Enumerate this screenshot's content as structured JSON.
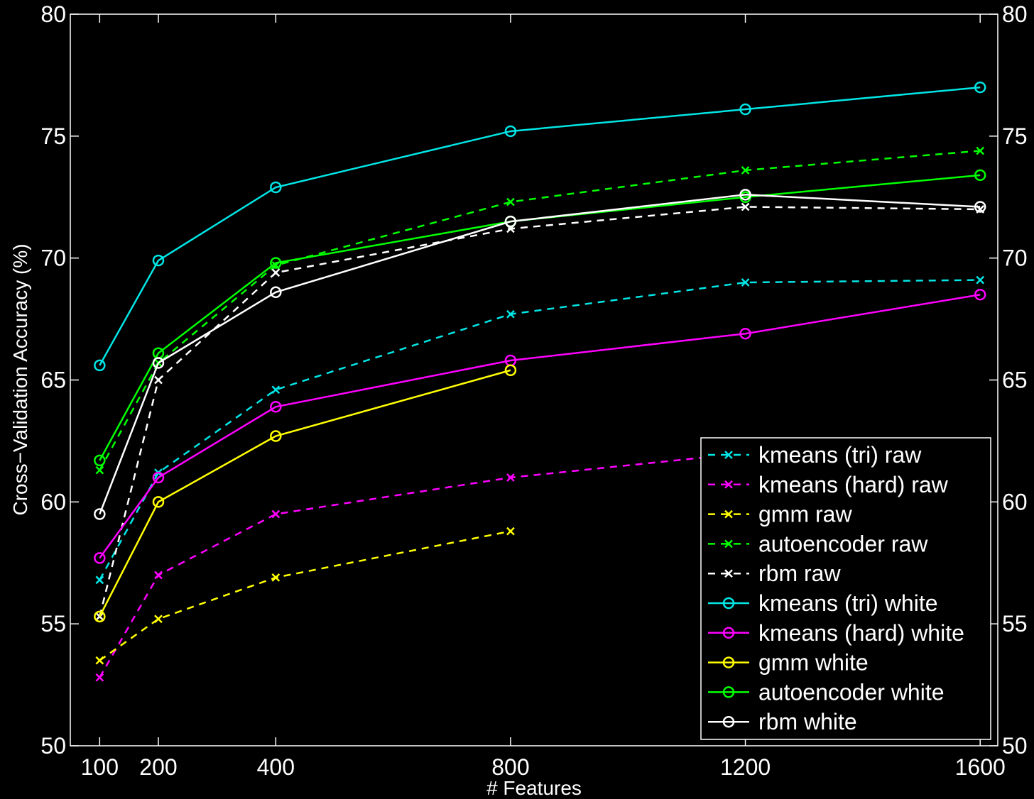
{
  "chart_data": {
    "type": "line",
    "title": "",
    "xlabel": "# Features",
    "ylabel": "Cross−Validation Accuracy (%)",
    "x": [
      100,
      200,
      400,
      800,
      1200,
      1600
    ],
    "x_tick_labels": [
      "100",
      "200",
      "400",
      "800",
      "1200",
      "1600"
    ],
    "ylim": [
      50,
      80
    ],
    "y_ticks": [
      50,
      55,
      60,
      65,
      70,
      75,
      80
    ],
    "y_tick_labels": [
      "50",
      "55",
      "60",
      "65",
      "70",
      "75",
      "80"
    ],
    "grid": false,
    "legend_position": "bottom-right",
    "background": "#000000",
    "series": [
      {
        "name": "kmeans (tri) raw",
        "color": "#00e5e5",
        "style": "dashed",
        "marker": "x",
        "values": [
          56.8,
          61.2,
          64.6,
          67.7,
          69.0,
          69.1
        ]
      },
      {
        "name": "kmeans (hard) raw",
        "color": "#ff00ff",
        "style": "dashed",
        "marker": "x",
        "values": [
          52.8,
          57.0,
          59.5,
          61.0,
          62.0,
          null
        ]
      },
      {
        "name": "gmm raw",
        "color": "#ffff00",
        "style": "dashed",
        "marker": "x",
        "values": [
          53.5,
          55.2,
          56.9,
          58.8,
          null,
          null
        ]
      },
      {
        "name": "autoencoder raw",
        "color": "#00ff00",
        "style": "dashed",
        "marker": "x",
        "values": [
          61.3,
          65.7,
          69.7,
          72.3,
          73.6,
          74.4
        ]
      },
      {
        "name": "rbm raw",
        "color": "#ffffff",
        "style": "dashed",
        "marker": "x",
        "values": [
          55.3,
          65.0,
          69.4,
          71.2,
          72.1,
          72.0
        ]
      },
      {
        "name": "kmeans (tri) white",
        "color": "#00e5e5",
        "style": "solid",
        "marker": "o",
        "values": [
          65.6,
          69.9,
          72.9,
          75.2,
          76.1,
          77.0
        ]
      },
      {
        "name": "kmeans (hard) white",
        "color": "#ff00ff",
        "style": "solid",
        "marker": "o",
        "values": [
          57.7,
          61.0,
          63.9,
          65.8,
          66.9,
          68.5
        ]
      },
      {
        "name": "gmm white",
        "color": "#ffff00",
        "style": "solid",
        "marker": "o",
        "values": [
          55.3,
          60.0,
          62.7,
          65.4,
          null,
          null
        ]
      },
      {
        "name": "autoencoder white",
        "color": "#00ff00",
        "style": "solid",
        "marker": "o",
        "values": [
          61.7,
          66.1,
          69.8,
          71.5,
          72.5,
          73.4
        ]
      },
      {
        "name": "rbm white",
        "color": "#ffffff",
        "style": "solid",
        "marker": "o",
        "values": [
          59.5,
          65.7,
          68.6,
          71.5,
          72.6,
          72.1
        ]
      }
    ]
  }
}
